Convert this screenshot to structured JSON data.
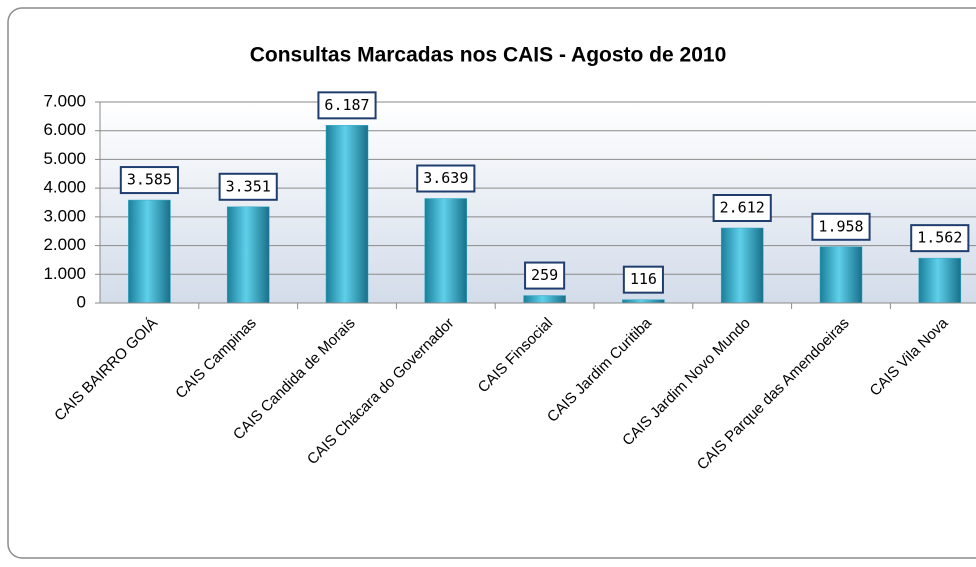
{
  "chart_data": {
    "type": "bar",
    "title": "Consultas Marcadas nos CAIS - Agosto de 2010",
    "categories": [
      "CAIS BAIRRO GOIÁ",
      "CAIS Campinas",
      "CAIS Candida de Morais",
      "CAIS Chácara do Governador",
      "CAIS Finsocial",
      "CAIS Jardim Curitiba",
      "CAIS Jardim Novo Mundo",
      "CAIS Parque das Amendoeiras",
      "CAIS Vila Nova"
    ],
    "values": [
      3585,
      3351,
      6187,
      3639,
      259,
      116,
      2612,
      1958,
      1562
    ],
    "value_labels": [
      "3.585",
      "3.351",
      "6.187",
      "3.639",
      "259",
      "116",
      "2.612",
      "1.958",
      "1.562"
    ],
    "color": "#2aa8c6",
    "ylim": [
      0,
      7000
    ],
    "yticks": [
      0,
      {
        "value": 1000,
        "label": "1.000"
      },
      {
        "value": 2000,
        "label": "2.000"
      },
      {
        "value": 3000,
        "label": "3.000"
      },
      {
        "value": 4000,
        "label": "4.000"
      },
      {
        "value": 5000,
        "label": "5.000"
      },
      {
        "value": 6000,
        "label": "6.000"
      },
      {
        "value": 7000,
        "label": "7.000"
      }
    ],
    "grid": true
  }
}
